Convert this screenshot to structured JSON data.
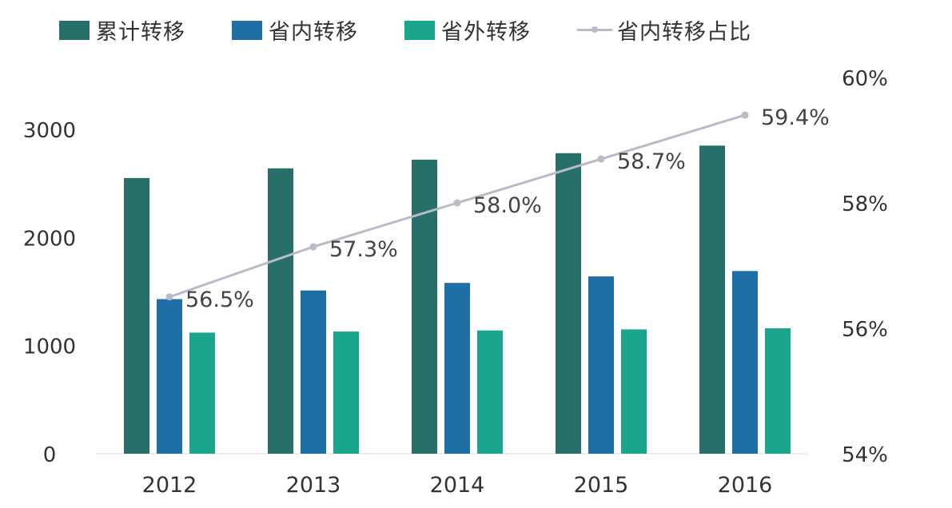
{
  "chart_data": {
    "type": "bar",
    "categories": [
      "2012",
      "2013",
      "2014",
      "2015",
      "2016"
    ],
    "series": [
      {
        "name": "累计转移",
        "type": "bar",
        "axis": "left",
        "color": "#27706a",
        "values": [
          2550,
          2640,
          2720,
          2780,
          2850
        ]
      },
      {
        "name": "省内转移",
        "type": "bar",
        "axis": "left",
        "color": "#1f6fa7",
        "values": [
          1430,
          1510,
          1580,
          1640,
          1690
        ]
      },
      {
        "name": "省外转移",
        "type": "bar",
        "axis": "left",
        "color": "#1aa58d",
        "values": [
          1120,
          1130,
          1140,
          1150,
          1160
        ]
      },
      {
        "name": "省内转移占比",
        "type": "line",
        "axis": "right",
        "color": "#b9bcc8",
        "values": [
          56.5,
          57.3,
          58.0,
          58.7,
          59.4
        ],
        "labels": [
          "56.5%",
          "57.3%",
          "58.0%",
          "58.7%",
          "59.4%"
        ]
      }
    ],
    "y_left": {
      "min": 0,
      "max": 3000,
      "ticks": [
        "0",
        "1000",
        "2000",
        "3000"
      ],
      "tick_values": [
        0,
        1000,
        2000,
        3000
      ]
    },
    "y_right": {
      "min": 54,
      "max": 60,
      "ticks": [
        "54%",
        "56%",
        "58%",
        "60%"
      ],
      "tick_values": [
        54,
        56,
        58,
        60
      ]
    },
    "grid": false,
    "legend_position": "top"
  }
}
